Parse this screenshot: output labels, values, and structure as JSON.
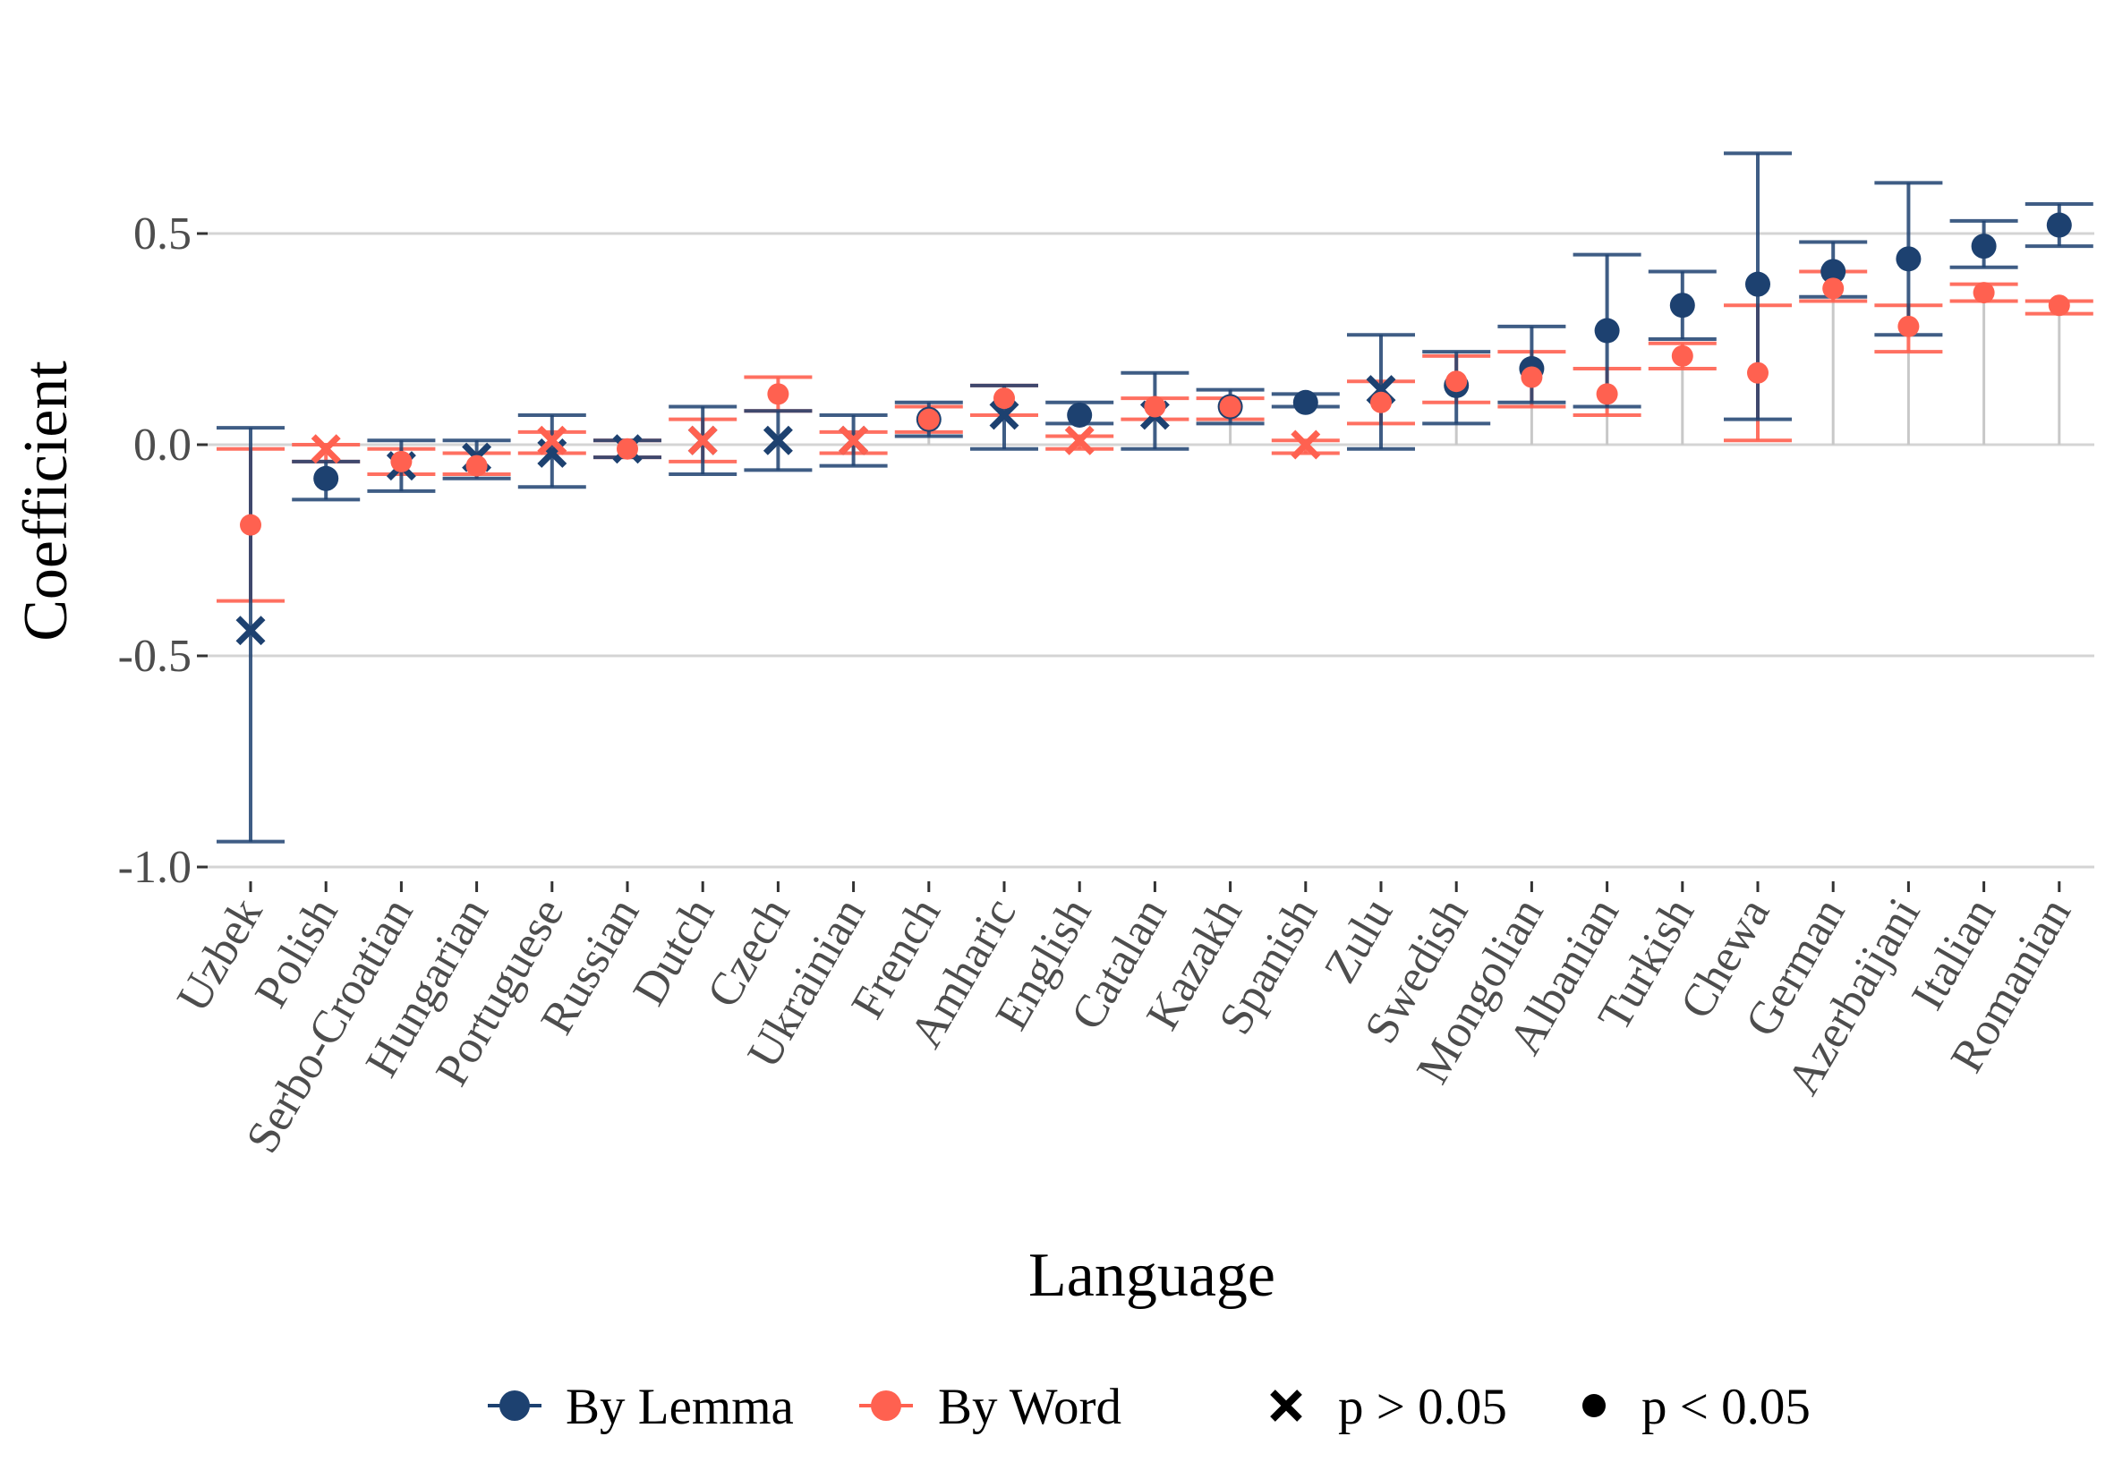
{
  "chart_data": {
    "type": "scatter",
    "subtype": "errorbar",
    "title": "",
    "xlabel": "Language",
    "ylabel": "Coefficient",
    "ylim": [
      -1.04,
      0.83
    ],
    "yticks": [
      -1.0,
      -0.5,
      0.0,
      0.5
    ],
    "ytick_labels": [
      "-1.0",
      "-0.5",
      "0.0",
      "0.5"
    ],
    "grid": true,
    "legend_position": "bottom",
    "categories": [
      "Uzbek",
      "Polish",
      "Serbo-Croatian",
      "Hungarian",
      "Portuguese",
      "Russian",
      "Dutch",
      "Czech",
      "Ukrainian",
      "French",
      "Amharic",
      "English",
      "Catalan",
      "Kazakh",
      "Spanish",
      "Zulu",
      "Swedish",
      "Mongolian",
      "Albanian",
      "Turkish",
      "Chewa",
      "German",
      "Azerbaijani",
      "Italian",
      "Romanian"
    ],
    "series": [
      {
        "name": "By Lemma",
        "color": "#1d4170",
        "values": [
          -0.44,
          -0.08,
          -0.05,
          -0.03,
          -0.02,
          -0.01,
          0.01,
          0.01,
          0.01,
          0.06,
          0.07,
          0.07,
          0.07,
          0.09,
          0.1,
          0.13,
          0.14,
          0.18,
          0.27,
          0.33,
          0.38,
          0.41,
          0.44,
          0.47,
          0.52
        ],
        "lower": [
          -0.94,
          -0.13,
          -0.11,
          -0.08,
          -0.1,
          -0.03,
          -0.07,
          -0.06,
          -0.05,
          0.02,
          -0.01,
          0.05,
          -0.01,
          0.05,
          0.09,
          -0.01,
          0.05,
          0.1,
          0.09,
          0.25,
          0.06,
          0.35,
          0.26,
          0.42,
          0.47
        ],
        "upper": [
          0.04,
          -0.04,
          0.01,
          0.01,
          0.07,
          0.01,
          0.09,
          0.08,
          0.07,
          0.1,
          0.14,
          0.1,
          0.17,
          0.13,
          0.12,
          0.26,
          0.22,
          0.28,
          0.45,
          0.41,
          0.69,
          0.48,
          0.62,
          0.53,
          0.57
        ],
        "significant": [
          false,
          true,
          false,
          false,
          false,
          false,
          false,
          false,
          false,
          true,
          false,
          true,
          false,
          true,
          true,
          false,
          true,
          true,
          true,
          true,
          true,
          true,
          true,
          true,
          true
        ]
      },
      {
        "name": "By Word",
        "color": "#ff6150",
        "values": [
          -0.19,
          -0.01,
          -0.04,
          -0.05,
          0.01,
          -0.01,
          0.01,
          0.12,
          0.01,
          0.06,
          0.11,
          0.01,
          0.09,
          0.09,
          0.0,
          0.1,
          0.15,
          0.16,
          0.12,
          0.21,
          0.17,
          0.37,
          0.28,
          0.36,
          0.33
        ],
        "lower": [
          -0.37,
          -0.04,
          -0.07,
          -0.07,
          -0.02,
          -0.03,
          -0.04,
          0.08,
          -0.02,
          0.03,
          0.07,
          -0.01,
          0.06,
          0.06,
          -0.02,
          0.05,
          0.1,
          0.09,
          0.07,
          0.18,
          0.01,
          0.34,
          0.22,
          0.34,
          0.31
        ],
        "upper": [
          -0.01,
          0.0,
          -0.01,
          -0.02,
          0.03,
          0.01,
          0.06,
          0.16,
          0.03,
          0.09,
          0.14,
          0.02,
          0.11,
          0.11,
          0.01,
          0.15,
          0.21,
          0.22,
          0.18,
          0.24,
          0.33,
          0.41,
          0.33,
          0.38,
          0.34
        ],
        "significant": [
          true,
          false,
          true,
          true,
          false,
          true,
          false,
          true,
          false,
          true,
          true,
          false,
          true,
          true,
          false,
          true,
          true,
          true,
          true,
          true,
          true,
          true,
          true,
          true,
          true
        ]
      }
    ]
  },
  "legend": {
    "series_labels": [
      "By Lemma",
      "By Word"
    ],
    "shape_labels": [
      "p > 0.05",
      "p < 0.05"
    ]
  }
}
